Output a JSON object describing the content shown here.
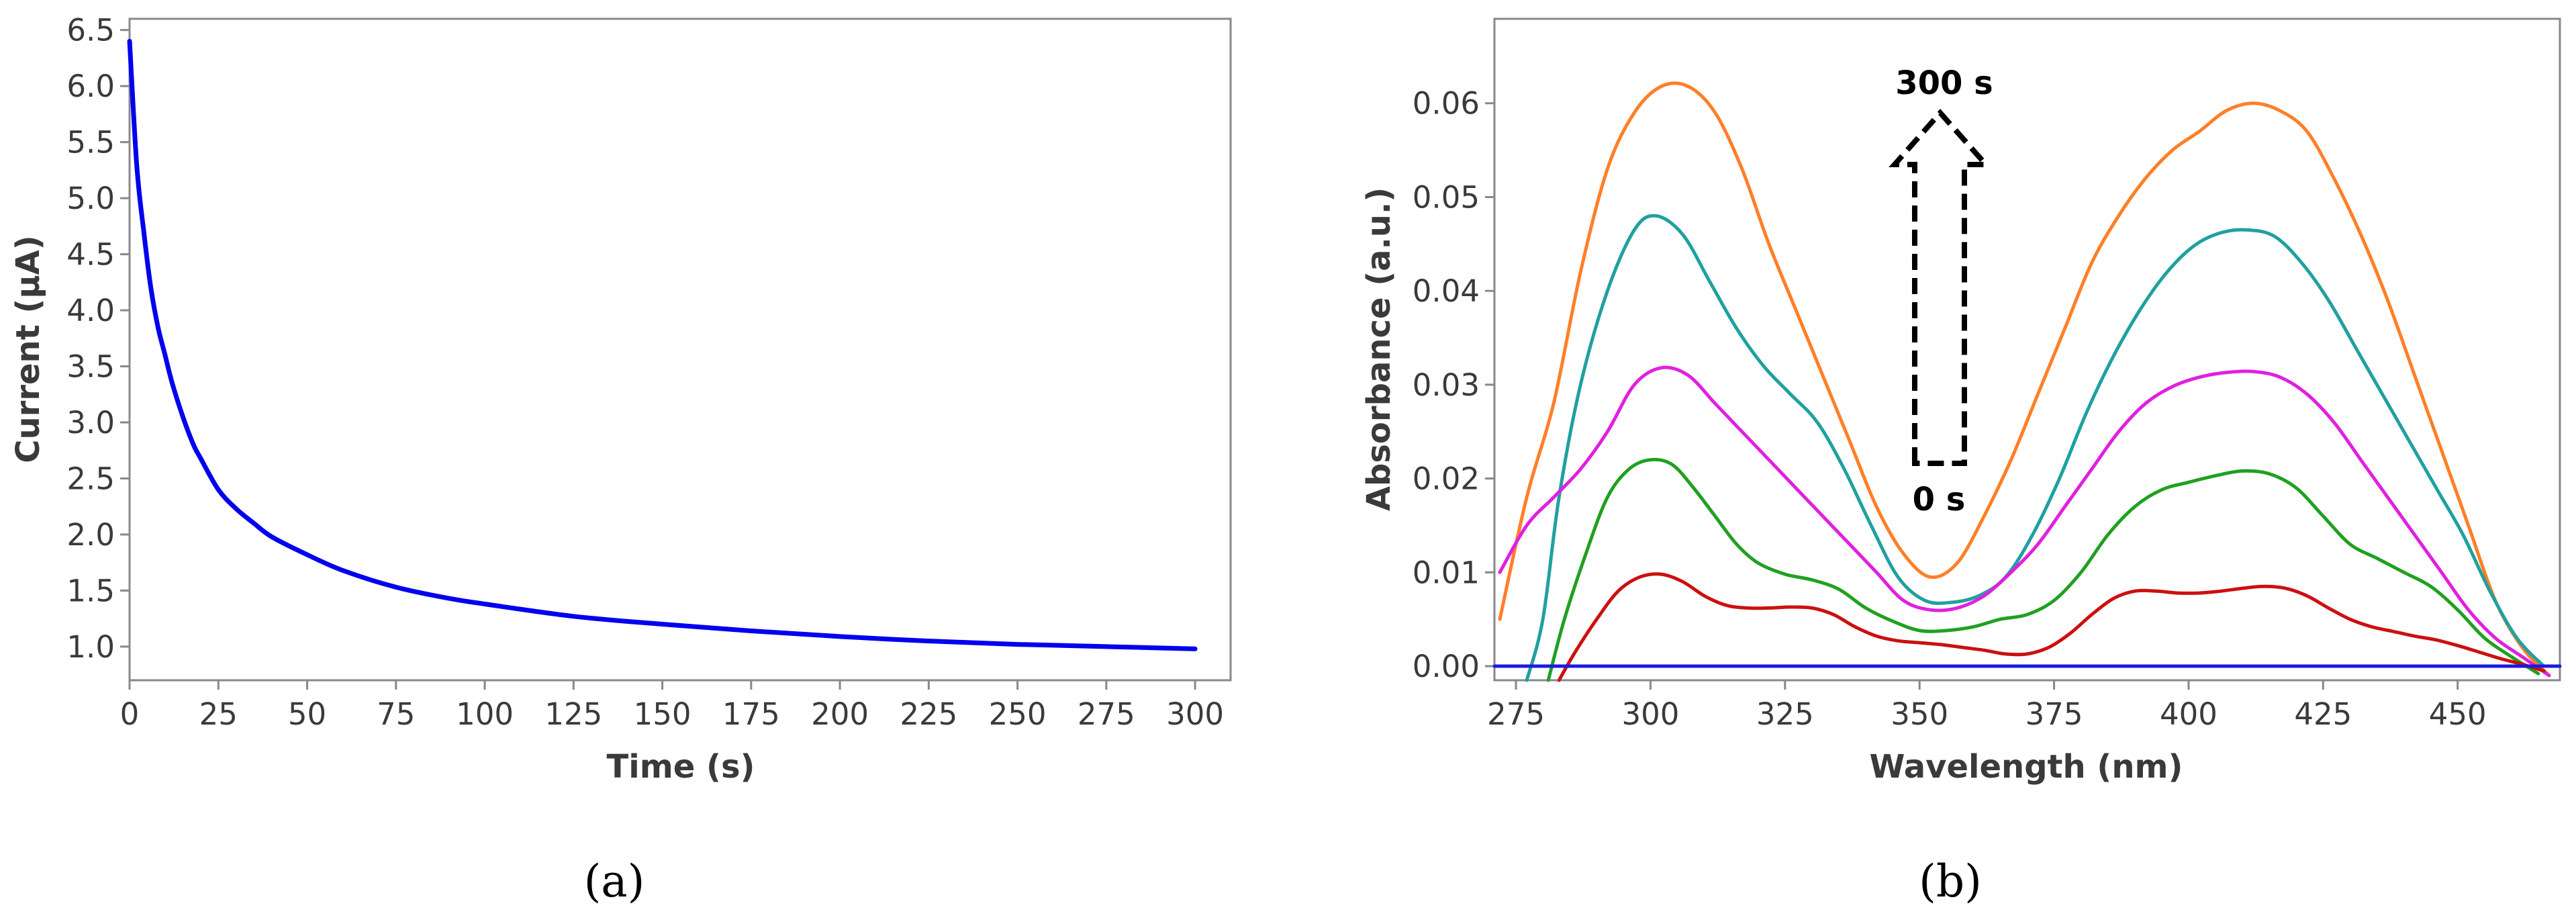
{
  "panels": {
    "a": {
      "label": "(a)"
    },
    "b": {
      "label": "(b)"
    }
  },
  "annotations": {
    "top": "300 s",
    "bottom": "0 s"
  },
  "chart_data": [
    {
      "type": "line",
      "title": "",
      "xlabel": "Time (s)",
      "ylabel": "Current (μA)",
      "xlim": [
        0,
        310
      ],
      "ylim": [
        0.7,
        6.6
      ],
      "xticks": [
        0,
        25,
        50,
        75,
        100,
        125,
        150,
        175,
        200,
        225,
        250,
        275,
        300
      ],
      "yticks": [
        1.0,
        1.5,
        2.0,
        2.5,
        3.0,
        3.5,
        4.0,
        4.5,
        5.0,
        5.5,
        6.0,
        6.5
      ],
      "grid": false,
      "series": [
        {
          "color": "#0000ee",
          "x": [
            0,
            2,
            4,
            6,
            8,
            10,
            12,
            15,
            18,
            20,
            25,
            30,
            35,
            40,
            50,
            60,
            75,
            90,
            100,
            125,
            150,
            175,
            200,
            225,
            250,
            275,
            300
          ],
          "y": [
            6.4,
            5.3,
            4.7,
            4.2,
            3.85,
            3.6,
            3.35,
            3.05,
            2.8,
            2.68,
            2.4,
            2.23,
            2.1,
            1.98,
            1.82,
            1.68,
            1.53,
            1.43,
            1.38,
            1.27,
            1.2,
            1.14,
            1.09,
            1.05,
            1.02,
            1.0,
            0.98
          ]
        }
      ]
    },
    {
      "type": "line",
      "title": "",
      "xlabel": "Wavelength (nm)",
      "ylabel": "Absorbance (a.u.)",
      "xlim": [
        271,
        469
      ],
      "ylim": [
        -0.0015,
        0.069
      ],
      "xticks": [
        275,
        300,
        325,
        350,
        375,
        400,
        425,
        450
      ],
      "yticks": [
        "0.00",
        "0.01",
        "0.02",
        "0.03",
        "0.04",
        "0.05",
        "0.06"
      ],
      "grid": false,
      "series": [
        {
          "color": "#ff7f27",
          "x": [
            272,
            277,
            282,
            287,
            292,
            297,
            302,
            307,
            312,
            317,
            322,
            327,
            332,
            337,
            342,
            347,
            352,
            357,
            362,
            367,
            372,
            377,
            382,
            387,
            392,
            397,
            402,
            407,
            412,
            417,
            422,
            427,
            432,
            437,
            442,
            447,
            452,
            457,
            462,
            467
          ],
          "y": [
            0.005,
            0.018,
            0.028,
            0.042,
            0.053,
            0.059,
            0.0618,
            0.0618,
            0.059,
            0.053,
            0.045,
            0.038,
            0.031,
            0.024,
            0.017,
            0.012,
            0.0095,
            0.011,
            0.016,
            0.022,
            0.029,
            0.036,
            0.043,
            0.048,
            0.052,
            0.055,
            0.057,
            0.0592,
            0.06,
            0.0592,
            0.057,
            0.052,
            0.046,
            0.039,
            0.031,
            0.023,
            0.015,
            0.007,
            0.002,
            -0.001
          ]
        },
        {
          "color": "#20a0a0",
          "x": [
            277,
            280,
            283,
            287,
            292,
            297,
            301,
            306,
            311,
            316,
            321,
            326,
            331,
            336,
            341,
            346,
            351,
            356,
            361,
            366,
            371,
            376,
            381,
            386,
            391,
            396,
            401,
            406,
            411,
            416,
            421,
            426,
            431,
            436,
            441,
            446,
            451,
            456,
            461,
            466
          ],
          "y": [
            -0.0015,
            0.005,
            0.018,
            0.03,
            0.04,
            0.0465,
            0.048,
            0.046,
            0.041,
            0.036,
            0.032,
            0.029,
            0.026,
            0.021,
            0.015,
            0.0095,
            0.007,
            0.0068,
            0.0075,
            0.0095,
            0.014,
            0.02,
            0.027,
            0.033,
            0.038,
            0.042,
            0.0448,
            0.0462,
            0.0465,
            0.0458,
            0.043,
            0.039,
            0.034,
            0.029,
            0.024,
            0.019,
            0.014,
            0.008,
            0.003,
            0.0
          ]
        },
        {
          "color": "#e020e0",
          "x": [
            272,
            277,
            282,
            287,
            292,
            297,
            302,
            307,
            312,
            317,
            322,
            327,
            332,
            337,
            342,
            347,
            352,
            357,
            362,
            367,
            372,
            377,
            382,
            387,
            392,
            397,
            402,
            407,
            412,
            417,
            422,
            427,
            432,
            437,
            442,
            447,
            452,
            457,
            462,
            467
          ],
          "y": [
            0.01,
            0.015,
            0.018,
            0.021,
            0.025,
            0.03,
            0.0318,
            0.031,
            0.028,
            0.025,
            0.022,
            0.019,
            0.016,
            0.013,
            0.01,
            0.007,
            0.006,
            0.0062,
            0.0075,
            0.01,
            0.013,
            0.017,
            0.021,
            0.025,
            0.028,
            0.0298,
            0.0308,
            0.0313,
            0.0314,
            0.0308,
            0.029,
            0.026,
            0.022,
            0.018,
            0.014,
            0.01,
            0.006,
            0.003,
            0.001,
            -0.001
          ]
        },
        {
          "color": "#20a020",
          "x": [
            281,
            284,
            288,
            292,
            296,
            300,
            304,
            308,
            312,
            316,
            320,
            325,
            330,
            335,
            340,
            345,
            350,
            355,
            360,
            365,
            370,
            375,
            380,
            385,
            390,
            395,
            400,
            405,
            410,
            415,
            420,
            425,
            430,
            435,
            440,
            445,
            450,
            455,
            460,
            465
          ],
          "y": [
            -0.0015,
            0.005,
            0.012,
            0.018,
            0.021,
            0.022,
            0.0215,
            0.019,
            0.016,
            0.013,
            0.011,
            0.0098,
            0.0092,
            0.0082,
            0.0062,
            0.0048,
            0.0038,
            0.0038,
            0.0042,
            0.005,
            0.0055,
            0.007,
            0.01,
            0.014,
            0.017,
            0.0188,
            0.0196,
            0.0203,
            0.0208,
            0.0205,
            0.019,
            0.016,
            0.013,
            0.0115,
            0.01,
            0.0085,
            0.006,
            0.003,
            0.001,
            -0.0008
          ]
        },
        {
          "color": "#cc1010",
          "x": [
            283,
            286,
            290,
            294,
            298,
            302,
            306,
            310,
            314,
            318,
            322,
            326,
            330,
            334,
            338,
            342,
            346,
            350,
            354,
            358,
            362,
            366,
            370,
            374,
            378,
            382,
            386,
            390,
            394,
            398,
            402,
            406,
            410,
            414,
            418,
            422,
            426,
            430,
            434,
            438,
            442,
            446,
            450,
            454,
            458,
            462,
            466
          ],
          "y": [
            -0.0015,
            0.0015,
            0.005,
            0.008,
            0.0095,
            0.0098,
            0.009,
            0.0075,
            0.0065,
            0.0062,
            0.0062,
            0.0063,
            0.0062,
            0.0055,
            0.0042,
            0.0032,
            0.0027,
            0.0025,
            0.0023,
            0.002,
            0.0017,
            0.0013,
            0.0013,
            0.002,
            0.0035,
            0.0055,
            0.0072,
            0.008,
            0.008,
            0.0078,
            0.0078,
            0.008,
            0.0083,
            0.0085,
            0.0083,
            0.0075,
            0.0062,
            0.005,
            0.0042,
            0.0037,
            0.0032,
            0.0028,
            0.0022,
            0.0015,
            0.0008,
            0.0002,
            -0.0005
          ]
        },
        {
          "color": "#1a1ae0",
          "x": [
            271,
            469
          ],
          "y": [
            0.0,
            0.0
          ]
        }
      ]
    }
  ]
}
